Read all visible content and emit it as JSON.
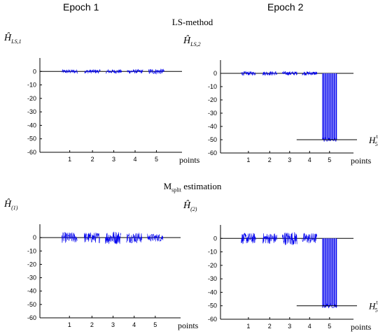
{
  "columns": {
    "left": "Epoch 1",
    "right": "Epoch 2"
  },
  "sections": {
    "top": "LS-method",
    "bottom_main": "M",
    "bottom_sub": "split",
    "bottom_rest": " estimation"
  },
  "colors": {
    "series": "#0000ee",
    "axis": "#000000",
    "zero_line": "#000000"
  },
  "chart_data": [
    {
      "type": "bar",
      "panel": "LS-method Epoch 1",
      "ylabel": "Ĥ_{LS,1}",
      "ylabel_main": "Ĥ",
      "ylabel_sub": "LS,1",
      "xlabel": "points",
      "categories": [
        "1",
        "2",
        "3",
        "4",
        "5"
      ],
      "ylim": [
        -60,
        10
      ],
      "yticks": [
        0,
        -10,
        -20,
        -30,
        -40,
        -50,
        -60
      ],
      "noise_amplitude": [
        1.5,
        1.5,
        1.5,
        1.5,
        2
      ],
      "bar_values": [
        0,
        0,
        0,
        0,
        0
      ],
      "reference_line": null
    },
    {
      "type": "bar",
      "panel": "LS-method Epoch 2",
      "ylabel": "Ĥ_{LS,2}",
      "ylabel_main": "Ĥ",
      "ylabel_sub": "LS,2",
      "xlabel": "points",
      "categories": [
        "1",
        "2",
        "3",
        "4",
        "5"
      ],
      "ylim": [
        -60,
        10
      ],
      "yticks": [
        0,
        -10,
        -20,
        -30,
        -40,
        -50,
        -60
      ],
      "noise_amplitude": [
        1.5,
        1.5,
        1.5,
        1.5,
        0
      ],
      "bar_values": [
        0,
        0,
        0,
        0,
        -50
      ],
      "reference_line": {
        "value": -50,
        "label_main": "H",
        "label_sup": "t",
        "label_sub": "5"
      }
    },
    {
      "type": "bar",
      "panel": "Msplit estimation Epoch 1",
      "ylabel": "Ĥ_(1)",
      "ylabel_main": "Ĥ",
      "ylabel_sub": "(1)",
      "xlabel": "points",
      "categories": [
        "1",
        "2",
        "3",
        "4",
        "5"
      ],
      "ylim": [
        -60,
        10
      ],
      "yticks": [
        0,
        -10,
        -20,
        -30,
        -40,
        -50,
        -60
      ],
      "noise_amplitude": [
        4,
        4,
        5,
        4,
        3
      ],
      "bar_values": [
        0,
        0,
        0,
        0,
        0
      ],
      "reference_line": null
    },
    {
      "type": "bar",
      "panel": "Msplit estimation Epoch 2",
      "ylabel": "Ĥ_(2)",
      "ylabel_main": "Ĥ",
      "ylabel_sub": "(2)",
      "xlabel": "points",
      "categories": [
        "1",
        "2",
        "3",
        "4",
        "5"
      ],
      "ylim": [
        -60,
        10
      ],
      "yticks": [
        0,
        -10,
        -20,
        -30,
        -40,
        -50,
        -60
      ],
      "noise_amplitude": [
        4,
        4,
        5,
        4,
        0
      ],
      "bar_values": [
        0,
        0,
        0,
        0,
        -50
      ],
      "reference_line": {
        "value": -50,
        "label_main": "H",
        "label_sup": "t",
        "label_sub": "5"
      }
    }
  ]
}
